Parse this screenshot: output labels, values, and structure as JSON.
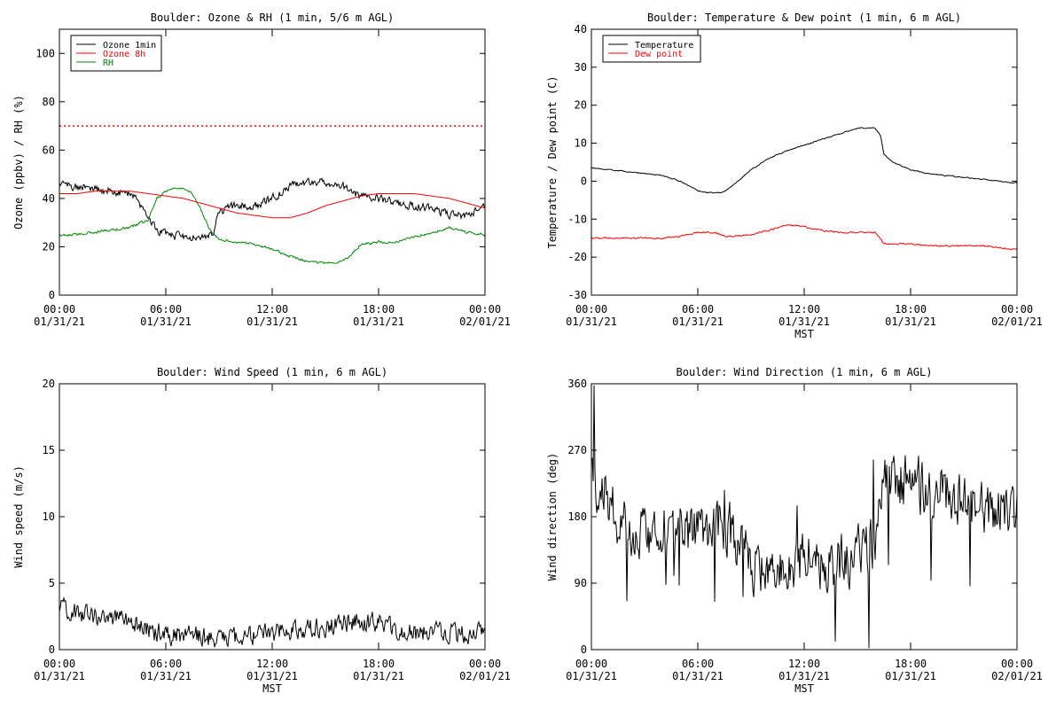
{
  "chart_data": [
    {
      "id": "ozone",
      "type": "line",
      "title": "Boulder: Ozone & RH (1 min, 5/6 m AGL)",
      "xlabel": "",
      "ylabel": "Ozone (ppbv) / RH (%)",
      "xlim": [
        0,
        24
      ],
      "ylim": [
        0,
        110
      ],
      "yticks": [
        0,
        20,
        40,
        60,
        80,
        100
      ],
      "xticks": [
        {
          "x": 0,
          "time": "00:00",
          "date": "01/31/21"
        },
        {
          "x": 6,
          "time": "06:00",
          "date": "01/31/21"
        },
        {
          "x": 12,
          "time": "12:00",
          "date": "01/31/21"
        },
        {
          "x": 18,
          "time": "18:00",
          "date": "01/31/21"
        },
        {
          "x": 24,
          "time": "00:00",
          "date": "02/01/21"
        }
      ],
      "legend": {
        "placement": "top-left"
      },
      "reference_lines": [
        {
          "y": 70,
          "color": "#ff0000",
          "style": "dotted"
        }
      ],
      "series": [
        {
          "name": "Ozone 1min",
          "color": "#000000",
          "noise": 2.5,
          "x": [
            0,
            1,
            2,
            3,
            4,
            4.5,
            5,
            5.5,
            6,
            7,
            8,
            8.7,
            9,
            9.5,
            10,
            11,
            12,
            13,
            14,
            15,
            16,
            16.5,
            17,
            18,
            19,
            20,
            21,
            22,
            23,
            24
          ],
          "y": [
            46,
            45,
            44,
            43,
            42,
            38,
            33,
            27,
            25,
            24,
            24,
            26,
            34,
            36,
            37,
            37,
            40,
            45,
            47,
            47,
            45,
            42,
            41,
            40,
            38,
            37,
            36,
            33,
            33,
            38
          ]
        },
        {
          "name": "Ozone 8h",
          "color": "#ff0000",
          "noise": 0,
          "x": [
            0,
            1,
            2,
            3,
            4,
            5,
            6,
            7,
            8,
            9,
            10,
            11,
            12,
            13,
            14,
            15,
            16,
            17,
            18,
            19,
            20,
            21,
            22,
            23,
            24
          ],
          "y": [
            42,
            42,
            43,
            43,
            43,
            42,
            41,
            40,
            38,
            36,
            34,
            33,
            32,
            32,
            34,
            37,
            39,
            41,
            42,
            42,
            42,
            41,
            40,
            38,
            36
          ]
        },
        {
          "name": "RH",
          "color": "#008800",
          "noise": 0.8,
          "x": [
            0,
            1,
            2,
            3,
            4,
            5,
            5.5,
            6,
            6.5,
            7,
            7.5,
            8,
            8.5,
            9,
            10,
            11,
            12,
            13,
            14,
            15,
            16,
            16.5,
            17,
            18,
            19,
            20,
            21,
            22,
            23,
            24
          ],
          "y": [
            25,
            25,
            26,
            27,
            28,
            31,
            40,
            43,
            44,
            44,
            42,
            35,
            27,
            23,
            22,
            21,
            19,
            16,
            14,
            13,
            14,
            17,
            21,
            22,
            22,
            24,
            26,
            28,
            26,
            25
          ]
        }
      ]
    },
    {
      "id": "temp",
      "type": "line",
      "title": "Boulder: Temperature & Dew point (1 min, 6 m AGL)",
      "xlabel": "MST",
      "ylabel": "Temperature / Dew point (C)",
      "xlim": [
        0,
        24
      ],
      "ylim": [
        -30,
        40
      ],
      "yticks": [
        -30,
        -20,
        -10,
        0,
        10,
        20,
        30,
        40
      ],
      "xticks": [
        {
          "x": 0,
          "time": "00:00",
          "date": "01/31/21"
        },
        {
          "x": 6,
          "time": "06:00",
          "date": "01/31/21"
        },
        {
          "x": 12,
          "time": "12:00",
          "date": "01/31/21"
        },
        {
          "x": 18,
          "time": "18:00",
          "date": "01/31/21"
        },
        {
          "x": 24,
          "time": "00:00",
          "date": "02/01/21"
        }
      ],
      "legend": {
        "placement": "top-left"
      },
      "reference_lines": [],
      "series": [
        {
          "name": "Temperature",
          "color": "#000000",
          "noise": 0.2,
          "x": [
            0,
            1,
            2,
            3,
            4,
            5,
            6,
            6.5,
            7,
            7.5,
            8,
            9,
            10,
            11,
            12,
            13,
            14,
            15,
            16,
            16.3,
            16.5,
            17,
            18,
            19,
            20,
            21,
            22,
            23,
            24
          ],
          "y": [
            3.5,
            3,
            2.5,
            2,
            1.5,
            0,
            -2.5,
            -3,
            -3,
            -2.8,
            -1,
            3,
            6,
            8,
            9.5,
            11,
            12.5,
            14,
            14,
            12,
            7,
            5,
            3,
            2,
            1.5,
            1,
            0.5,
            0,
            -0.5
          ]
        },
        {
          "name": "Dew point",
          "color": "#ff0000",
          "noise": 0.3,
          "x": [
            0,
            1,
            2,
            3,
            4,
            5,
            6,
            7,
            7.5,
            8,
            9,
            10,
            11,
            12,
            13,
            14,
            15,
            16,
            16.3,
            16.5,
            17,
            18,
            19,
            20,
            21,
            22,
            23,
            24
          ],
          "y": [
            -15,
            -15,
            -15,
            -15,
            -15,
            -14.5,
            -13.5,
            -13.5,
            -14.5,
            -14.5,
            -14,
            -13,
            -11.5,
            -12,
            -13,
            -13.5,
            -13.5,
            -13.5,
            -15,
            -16.5,
            -16.5,
            -16.5,
            -17,
            -17,
            -17,
            -17,
            -17.5,
            -18
          ]
        }
      ]
    },
    {
      "id": "wspd",
      "type": "line",
      "title": "Boulder: Wind Speed (1 min, 6 m AGL)",
      "xlabel": "MST",
      "ylabel": "Wind speed (m/s)",
      "xlim": [
        0,
        24
      ],
      "ylim": [
        0,
        20
      ],
      "yticks": [
        0,
        5,
        10,
        15,
        20
      ],
      "xticks": [
        {
          "x": 0,
          "time": "00:00",
          "date": "01/31/21"
        },
        {
          "x": 6,
          "time": "06:00",
          "date": "01/31/21"
        },
        {
          "x": 12,
          "time": "12:00",
          "date": "01/31/21"
        },
        {
          "x": 18,
          "time": "18:00",
          "date": "01/31/21"
        },
        {
          "x": 24,
          "time": "00:00",
          "date": "02/01/21"
        }
      ],
      "legend": null,
      "reference_lines": [],
      "series": [
        {
          "name": "",
          "color": "#000000",
          "noise": 1.1,
          "x": [
            0,
            1,
            2,
            3,
            4,
            5,
            6,
            7,
            8,
            9,
            10,
            11,
            12,
            13,
            14,
            15,
            16,
            17,
            18,
            19,
            20,
            21,
            22,
            23,
            24
          ],
          "y": [
            3,
            2.8,
            2.5,
            2.2,
            2.2,
            1.4,
            1.2,
            1.1,
            1,
            0.9,
            0.9,
            1.1,
            1.3,
            1.5,
            1.6,
            1.7,
            2,
            2.2,
            2,
            1.6,
            1.3,
            1.2,
            1.1,
            1.1,
            1.2
          ]
        }
      ]
    },
    {
      "id": "wdir",
      "type": "line",
      "title": "Boulder: Wind Direction (1 min, 6 m AGL)",
      "xlabel": "MST",
      "ylabel": "Wind direction (deg)",
      "xlim": [
        0,
        24
      ],
      "ylim": [
        0,
        360
      ],
      "yticks": [
        0,
        90,
        180,
        270,
        360
      ],
      "xticks": [
        {
          "x": 0,
          "time": "00:00",
          "date": "01/31/21"
        },
        {
          "x": 6,
          "time": "06:00",
          "date": "01/31/21"
        },
        {
          "x": 12,
          "time": "12:00",
          "date": "01/31/21"
        },
        {
          "x": 18,
          "time": "18:00",
          "date": "01/31/21"
        },
        {
          "x": 24,
          "time": "00:00",
          "date": "02/01/21"
        }
      ],
      "legend": null,
      "reference_lines": [],
      "series": [
        {
          "name": "",
          "color": "#000000",
          "noise": 55,
          "x": [
            0,
            1,
            2,
            3,
            4,
            5,
            6,
            7,
            8,
            9,
            10,
            11,
            12,
            13,
            14,
            15,
            16,
            16.5,
            17,
            18,
            19,
            20,
            21,
            22,
            23,
            24
          ],
          "y": [
            240,
            200,
            160,
            160,
            170,
            150,
            160,
            170,
            160,
            120,
            100,
            110,
            120,
            110,
            120,
            130,
            140,
            225,
            225,
            225,
            215,
            210,
            200,
            195,
            190,
            200
          ]
        }
      ]
    }
  ]
}
